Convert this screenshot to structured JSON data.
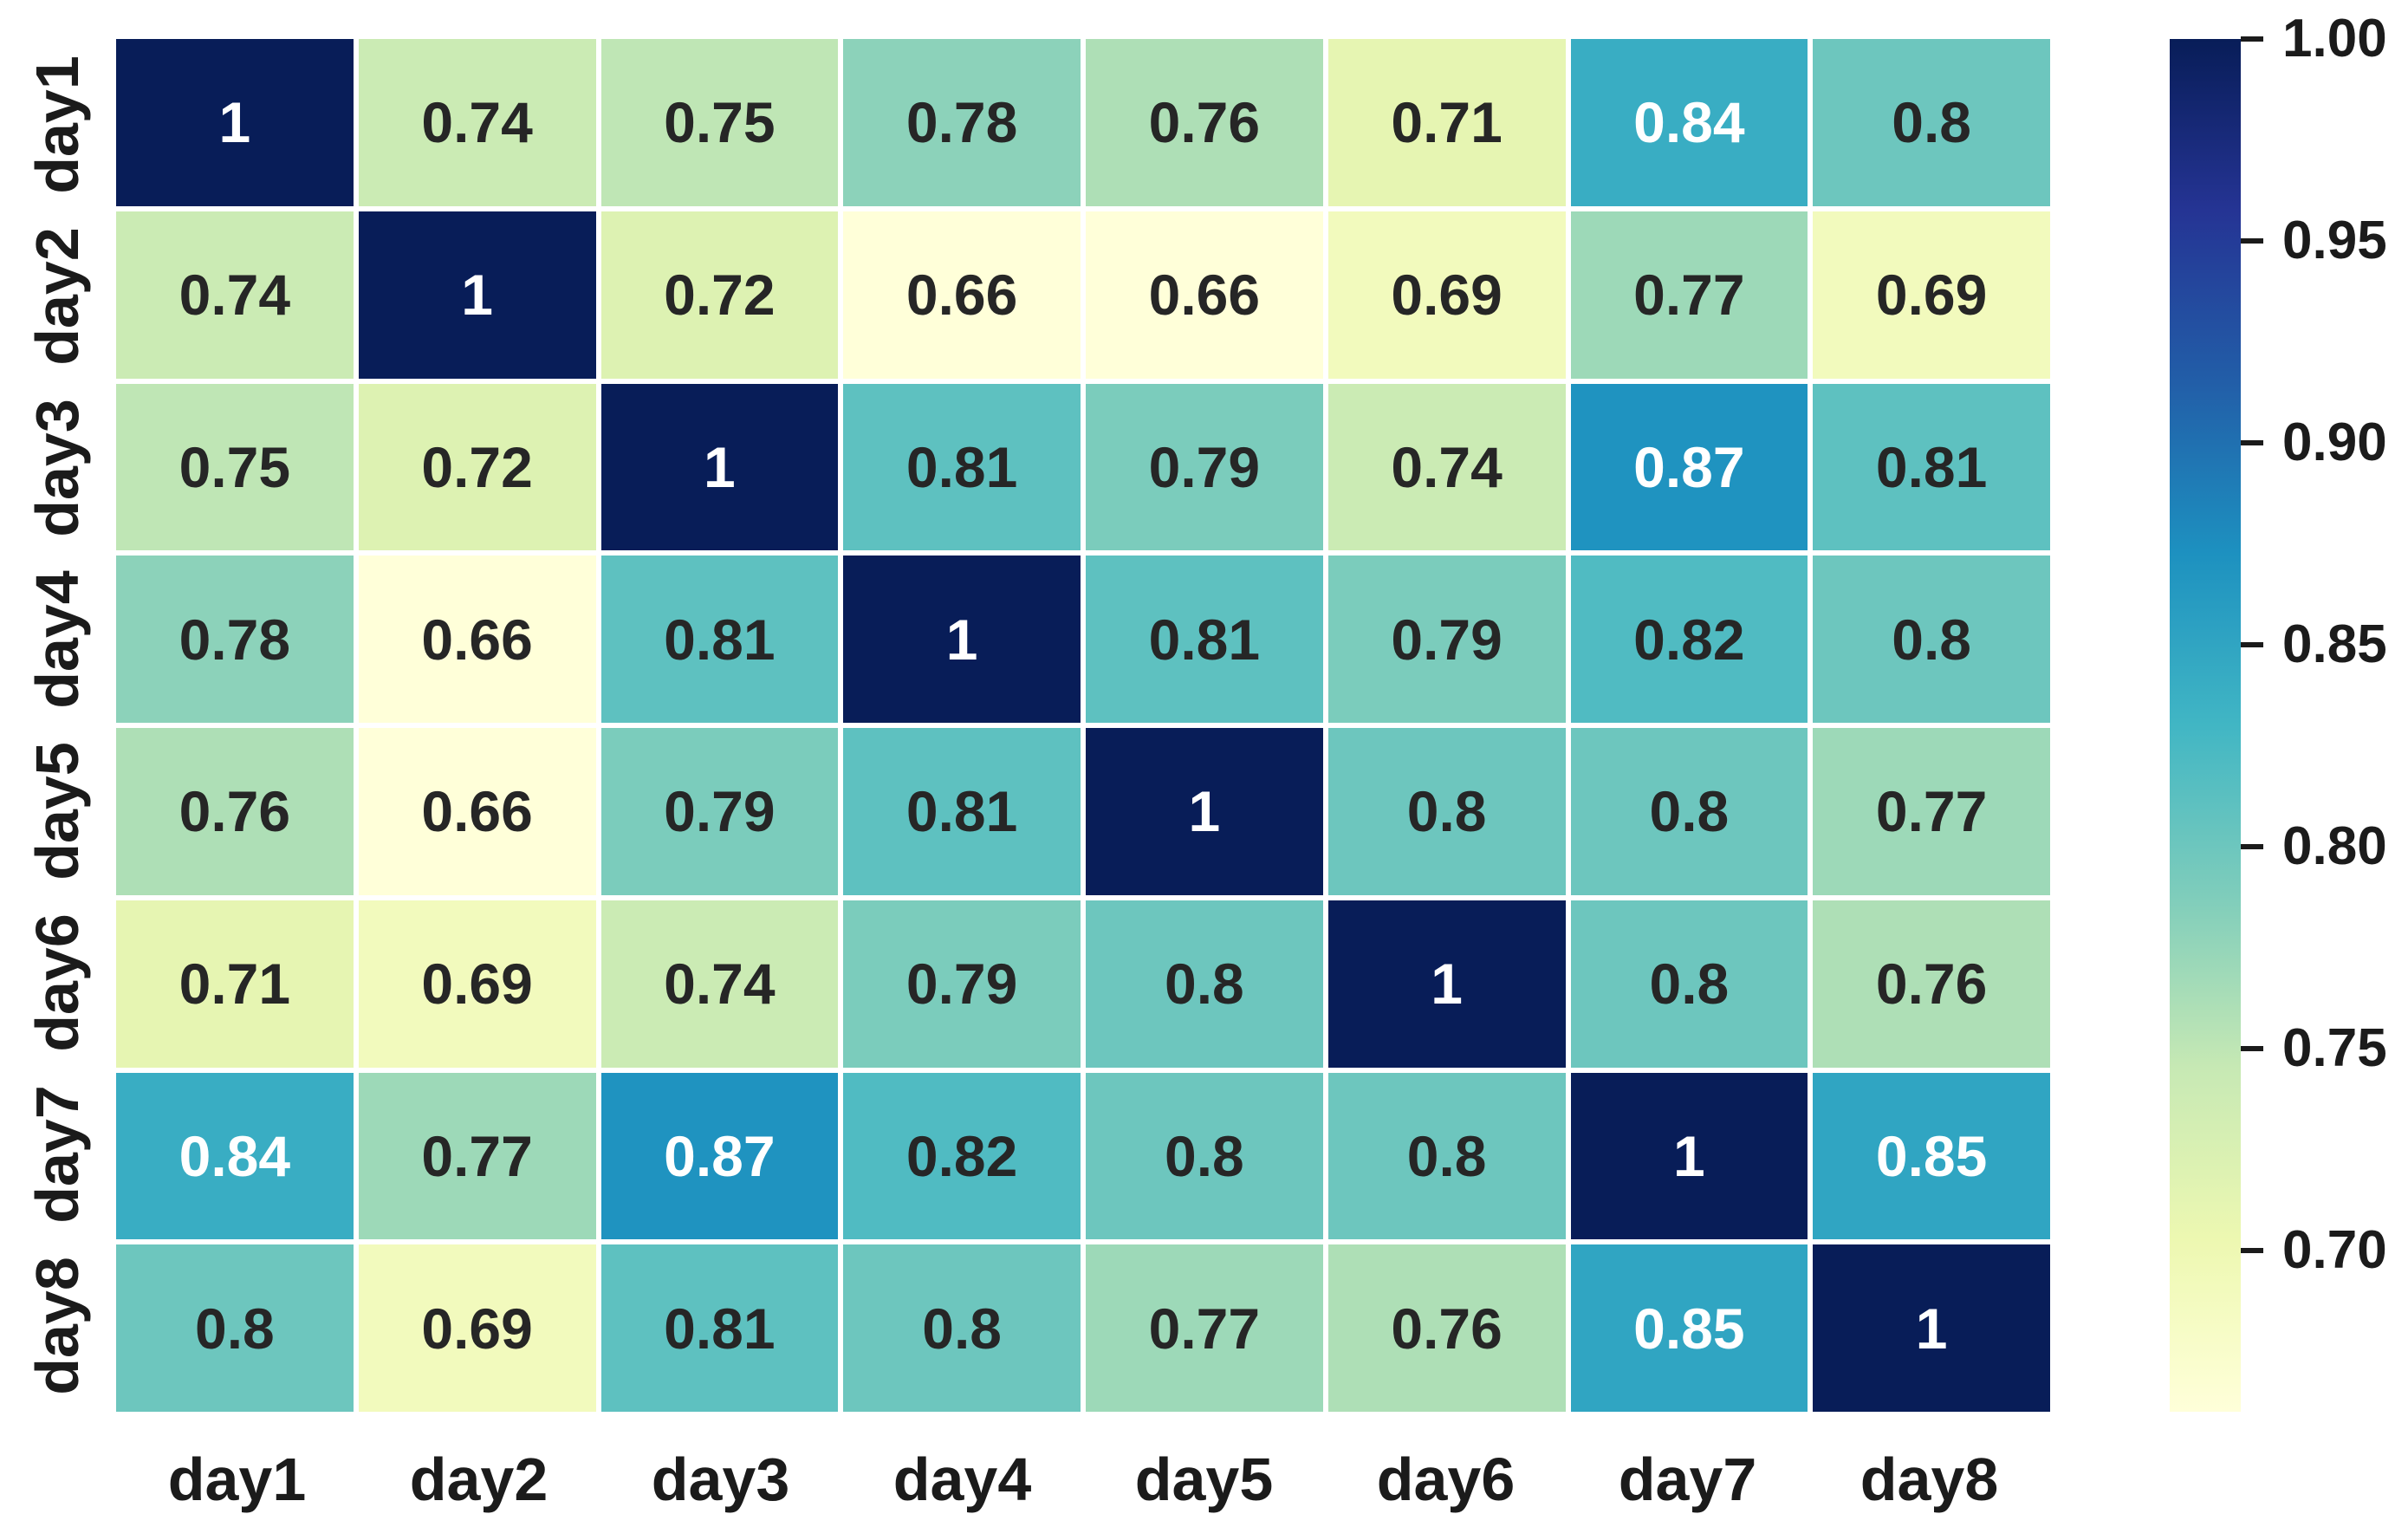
{
  "chart_data": {
    "type": "heatmap",
    "title": "",
    "xlabel": "",
    "ylabel": "",
    "x_categories": [
      "day1",
      "day2",
      "day3",
      "day4",
      "day5",
      "day6",
      "day7",
      "day8"
    ],
    "y_categories": [
      "day1",
      "day2",
      "day3",
      "day4",
      "day5",
      "day6",
      "day7",
      "day8"
    ],
    "matrix": [
      [
        1,
        0.74,
        0.75,
        0.78,
        0.76,
        0.71,
        0.84,
        0.8
      ],
      [
        0.74,
        1,
        0.72,
        0.66,
        0.66,
        0.69,
        0.77,
        0.69
      ],
      [
        0.75,
        0.72,
        1,
        0.81,
        0.79,
        0.74,
        0.87,
        0.81
      ],
      [
        0.78,
        0.66,
        0.81,
        1,
        0.81,
        0.79,
        0.82,
        0.8
      ],
      [
        0.76,
        0.66,
        0.79,
        0.81,
        1,
        0.8,
        0.8,
        0.77
      ],
      [
        0.71,
        0.69,
        0.74,
        0.79,
        0.8,
        1,
        0.8,
        0.76
      ],
      [
        0.84,
        0.77,
        0.87,
        0.82,
        0.8,
        0.8,
        1,
        0.85
      ],
      [
        0.8,
        0.69,
        0.81,
        0.8,
        0.77,
        0.76,
        0.85,
        1
      ]
    ],
    "grid": false,
    "legend_position": "right-colorbar",
    "colormap": {
      "name": "YlGnBu",
      "stops": [
        "#ffffd9",
        "#edf8b1",
        "#c7e9b4",
        "#7fcdbb",
        "#41b6c4",
        "#1d91c0",
        "#225ea8",
        "#253494",
        "#081d58"
      ],
      "vmin": 0.66,
      "vmax": 1.0
    },
    "colorbar": {
      "tick_values": [
        1.0,
        0.95,
        0.9,
        0.85,
        0.8,
        0.75,
        0.7
      ],
      "tick_labels": [
        "1.00",
        "0.95",
        "0.90",
        "0.85",
        "0.80",
        "0.75",
        "0.70"
      ]
    },
    "annotation_text_dark": "#262626",
    "annotation_text_light": "#ffffff",
    "axis_label_color": "#1b1b1b"
  }
}
